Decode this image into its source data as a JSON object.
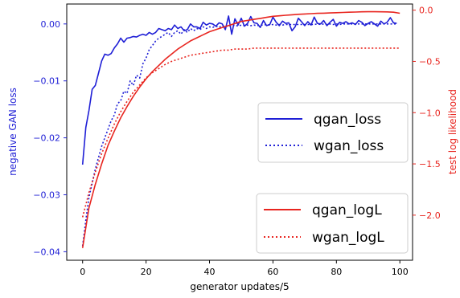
{
  "chart_data": {
    "type": "line",
    "xlabel": "generator updates/5",
    "ylabel_left": "negative GAN loss",
    "ylabel_right": "test log likelihood",
    "xlim": [
      -5,
      104
    ],
    "ylim_left": [
      -0.0415,
      0.0035
    ],
    "ylim_right": [
      -2.44,
      0.06
    ],
    "x_ticks": [
      0,
      20,
      40,
      60,
      80,
      100
    ],
    "y_ticks_left": [
      0.0,
      -0.01,
      -0.02,
      -0.03,
      -0.04
    ],
    "y_tick_labels_left": [
      "0.00",
      "−0.01",
      "−0.02",
      "−0.03",
      "−0.04"
    ],
    "y_ticks_right": [
      0.0,
      -0.5,
      -1.0,
      -1.5,
      -2.0
    ],
    "y_tick_labels_right": [
      "0.0",
      "−0.5",
      "−1.0",
      "−1.5",
      "−2.0"
    ],
    "left_color": "#1f1fd6",
    "right_color": "#e8251f",
    "grid": false,
    "legends": [
      {
        "placement": "center-right",
        "entries": [
          "qgan_loss",
          "wgan_loss"
        ]
      },
      {
        "placement": "lower-right",
        "entries": [
          "qgan_logL",
          "wgan_logL"
        ]
      }
    ],
    "series": [
      {
        "name": "qgan_loss",
        "axis": "left",
        "color": "#1f1fd6",
        "style": "solid",
        "x": [
          0,
          1,
          2,
          3,
          4,
          5,
          6,
          7,
          8,
          9,
          10,
          11,
          12,
          13,
          14,
          15,
          16,
          17,
          18,
          19,
          20,
          21,
          22,
          23,
          24,
          25,
          26,
          27,
          28,
          29,
          30,
          31,
          32,
          33,
          34,
          35,
          36,
          37,
          38,
          39,
          40,
          41,
          42,
          43,
          44,
          45,
          46,
          47,
          48,
          49,
          50,
          51,
          52,
          53,
          54,
          55,
          56,
          57,
          58,
          59,
          60,
          61,
          62,
          63,
          64,
          65,
          66,
          67,
          68,
          69,
          70,
          71,
          72,
          73,
          74,
          75,
          76,
          77,
          78,
          79,
          80,
          81,
          82,
          83,
          84,
          85,
          86,
          87,
          88,
          89,
          90,
          91,
          92,
          93,
          94,
          95,
          96,
          97,
          98,
          99
        ],
        "y": [
          -0.0247,
          -0.0182,
          -0.0152,
          -0.0115,
          -0.0108,
          -0.0087,
          -0.0065,
          -0.0053,
          -0.0055,
          -0.0052,
          -0.0042,
          -0.0035,
          -0.0025,
          -0.0032,
          -0.0025,
          -0.0024,
          -0.0022,
          -0.0023,
          -0.002,
          -0.0018,
          -0.002,
          -0.0015,
          -0.0018,
          -0.0015,
          -0.0008,
          -0.001,
          -0.0012,
          -0.0008,
          -0.001,
          -0.0002,
          -0.0008,
          -0.0005,
          -0.0012,
          -0.001,
          0.0,
          -0.0005,
          -0.0005,
          -0.0008,
          0.0003,
          -0.0002,
          0.0001,
          0.0,
          -0.0004,
          0.0002,
          0.0,
          -0.001,
          0.0014,
          -0.0018,
          0.0009,
          -0.0002,
          0.001,
          -0.0004,
          0.0001,
          0.0013,
          0.0002,
          0.0001,
          -0.0006,
          0.0006,
          -0.0003,
          -0.0001,
          0.0012,
          0.0003,
          -0.0003,
          0.0005,
          0.0001,
          0.0002,
          -0.0012,
          -0.0005,
          0.001,
          0.0004,
          -0.0003,
          0.0004,
          -0.0002,
          0.0012,
          0.0001,
          0.0,
          0.0006,
          -0.0003,
          0.0003,
          0.0008,
          -0.0004,
          0.0003,
          0.0001,
          0.0004,
          0.0,
          0.0002,
          -0.0001,
          0.0006,
          0.0003,
          -0.0003,
          0.0001,
          0.0004,
          0.0,
          -0.0004,
          0.0005,
          0.0,
          0.0003,
          0.0011,
          0.0002,
          0.0001
        ]
      },
      {
        "name": "wgan_loss",
        "axis": "left",
        "color": "#1f1fd6",
        "style": "dotted",
        "x": [
          0,
          1,
          2,
          3,
          4,
          5,
          6,
          7,
          8,
          9,
          10,
          11,
          12,
          13,
          14,
          15,
          16,
          17,
          18,
          19,
          20,
          21,
          22,
          23,
          24,
          25,
          26,
          27,
          28,
          29,
          30,
          31,
          32,
          33,
          34,
          35,
          36,
          37,
          38,
          39,
          40,
          41,
          42,
          43,
          44,
          45,
          46,
          47,
          48,
          49,
          50,
          51,
          52,
          53,
          54,
          55,
          56,
          57,
          58,
          59,
          60,
          61,
          62,
          63,
          64,
          65,
          66,
          67,
          68,
          69,
          70,
          71,
          72,
          73,
          74,
          75,
          76,
          77,
          78,
          79,
          80,
          81,
          82,
          83,
          84,
          85,
          86,
          87,
          88,
          89,
          90,
          91,
          92,
          93,
          94,
          95,
          96,
          97,
          98,
          99
        ],
        "y": [
          -0.039,
          -0.0345,
          -0.0305,
          -0.028,
          -0.0255,
          -0.0235,
          -0.0215,
          -0.02,
          -0.0185,
          -0.017,
          -0.016,
          -0.014,
          -0.0135,
          -0.0118,
          -0.0122,
          -0.01,
          -0.0108,
          -0.009,
          -0.0095,
          -0.007,
          -0.006,
          -0.0045,
          -0.0038,
          -0.003,
          -0.0025,
          -0.0022,
          -0.0018,
          -0.0015,
          -0.0022,
          -0.0015,
          -0.0012,
          -0.0018,
          -0.001,
          -0.0015,
          -0.0008,
          -0.0012,
          -0.0008,
          -0.001,
          -0.0005,
          -0.0008,
          -0.0005,
          -0.0006,
          -0.0004,
          -0.0006,
          -0.0003,
          -0.0005,
          -0.0003,
          -0.0004,
          -0.0002,
          -0.0004,
          -0.0002,
          -0.0003,
          -0.0002,
          -0.0003,
          -0.0002,
          -0.0003,
          -0.0002,
          -0.0002,
          -0.0001,
          -0.0002,
          -0.0001,
          -0.0002,
          -0.0001,
          -0.0002,
          -0.0001,
          -0.0001,
          -0.0001,
          -0.0001,
          -0.0001,
          -0.0001,
          -0.0001,
          -0.0001,
          -0.0001,
          -0.0001,
          0.0,
          -0.0001,
          0.0,
          -0.0001,
          0.0,
          -0.0001,
          0.0,
          -0.0001,
          0.0,
          0.0,
          0.0,
          0.0,
          0.0,
          0.0,
          0.0,
          0.0,
          0.0,
          0.0,
          0.0,
          0.0,
          0.0,
          0.0,
          0.0,
          0.0,
          0.0,
          0.0
        ]
      },
      {
        "name": "qgan_logL",
        "axis": "right",
        "color": "#e8251f",
        "style": "solid",
        "x": [
          0,
          2,
          4,
          6,
          8,
          10,
          12,
          14,
          16,
          18,
          20,
          22,
          24,
          26,
          28,
          30,
          32,
          34,
          36,
          38,
          40,
          42,
          44,
          46,
          48,
          50,
          52,
          54,
          56,
          58,
          60,
          62,
          64,
          66,
          68,
          70,
          72,
          74,
          76,
          78,
          80,
          82,
          84,
          86,
          88,
          90,
          92,
          94,
          96,
          98,
          100
        ],
        "y": [
          -2.32,
          -1.93,
          -1.7,
          -1.5,
          -1.32,
          -1.18,
          -1.05,
          -0.94,
          -0.84,
          -0.75,
          -0.67,
          -0.6,
          -0.54,
          -0.48,
          -0.43,
          -0.38,
          -0.34,
          -0.3,
          -0.27,
          -0.24,
          -0.21,
          -0.19,
          -0.17,
          -0.15,
          -0.13,
          -0.11,
          -0.1,
          -0.09,
          -0.08,
          -0.07,
          -0.06,
          -0.055,
          -0.05,
          -0.045,
          -0.04,
          -0.037,
          -0.034,
          -0.031,
          -0.029,
          -0.027,
          -0.025,
          -0.022,
          -0.02,
          -0.018,
          -0.016,
          -0.015,
          -0.015,
          -0.016,
          -0.017,
          -0.02,
          -0.03
        ]
      },
      {
        "name": "wgan_logL",
        "axis": "right",
        "color": "#e8251f",
        "style": "dotted",
        "x": [
          0,
          2,
          4,
          6,
          8,
          10,
          12,
          14,
          16,
          18,
          20,
          22,
          24,
          26,
          28,
          30,
          32,
          34,
          36,
          38,
          40,
          42,
          44,
          46,
          48,
          50,
          52,
          54,
          56,
          58,
          60,
          62,
          64,
          66,
          68,
          70,
          72,
          74,
          76,
          78,
          80,
          82,
          84,
          86,
          88,
          90,
          92,
          94,
          96,
          98,
          100
        ],
        "y": [
          -2.02,
          -1.78,
          -1.58,
          -1.4,
          -1.25,
          -1.11,
          -0.99,
          -0.89,
          -0.8,
          -0.73,
          -0.66,
          -0.61,
          -0.57,
          -0.53,
          -0.5,
          -0.48,
          -0.46,
          -0.44,
          -0.43,
          -0.42,
          -0.41,
          -0.4,
          -0.39,
          -0.39,
          -0.38,
          -0.38,
          -0.38,
          -0.37,
          -0.37,
          -0.37,
          -0.37,
          -0.37,
          -0.37,
          -0.37,
          -0.37,
          -0.37,
          -0.37,
          -0.37,
          -0.37,
          -0.37,
          -0.37,
          -0.37,
          -0.37,
          -0.37,
          -0.37,
          -0.37,
          -0.37,
          -0.37,
          -0.37,
          -0.37,
          -0.37
        ]
      }
    ]
  }
}
